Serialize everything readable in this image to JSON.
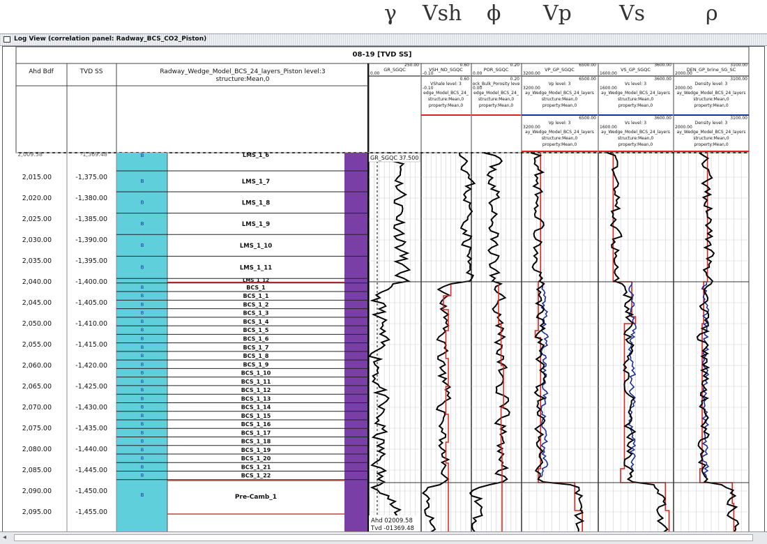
{
  "symbols": {
    "gamma": "γ",
    "vsh": "Vsh",
    "phi": "ϕ",
    "vp": "Vp",
    "vs": "Vs",
    "rho": "ρ"
  },
  "window": {
    "title": "Log View (correlation panel: Radway_BCS_CO2_Piston)"
  },
  "well": {
    "name": "08-19 [TVD SS]"
  },
  "columns": {
    "ahd": "Ahd Bdf",
    "tvd": "TVD SS",
    "model_title": "Radway_Wedge_Model_BCS_24_layers_Piston level:3",
    "model_sub": "structure:Mean,0"
  },
  "tracks": [
    {
      "title": "GR_SGQC",
      "left_val": "0.00",
      "right_val": "250.00",
      "sub": []
    },
    {
      "title": "VSH_ND_SGQC",
      "left_val": "-0.10",
      "right_val": "0.60",
      "sub": [
        "0.60",
        "VShale level: 3",
        "-0.10",
        "edge_Model_BCS_24_",
        "structure:Mean,0",
        "property:Mean,0"
      ]
    },
    {
      "title": "POR_SGQC",
      "left_val": "0.00",
      "right_val": "0.20",
      "sub": [
        "0.20",
        "ock_Bulk_Porosity leve",
        "0.00",
        "edge_Model_BCS_24_",
        "structure:Mean,0",
        "property:Mean,0"
      ]
    },
    {
      "title": "VP_GP_SGQC",
      "left_val": "3200.00",
      "right_val": "6500.00",
      "sub": [
        "6500.00",
        "Vp level: 3",
        "3200.00",
        "ay_Wedge_Model_BCS_24_layers",
        "structure:Mean,0",
        "property:Mean,0",
        "6500.00",
        "Vp level: 3",
        "3200.00",
        "ay_Wedge_Model_BCS_24_layers",
        "structure:Mean,0",
        "property:Mean,0"
      ]
    },
    {
      "title": "VS_GP_SGQC",
      "left_val": "1600.00",
      "right_val": "3600.00",
      "sub": [
        "3600.00",
        "Vs level: 3",
        "1600.00",
        "ay_Wedge_Model_BCS_24_layers",
        "structure:Mean,0",
        "property:Mean,0",
        "3600.00",
        "Vs level: 3",
        "1600.00",
        "ay_Wedge_Model_BCS_24_layers",
        "structure:Mean,0",
        "property:Mean,0"
      ]
    },
    {
      "title": "DEN_GP_brine_SG_SC",
      "left_val": "2000.00",
      "right_val": "3100.00",
      "sub": [
        "3100.00",
        "Density level: 3",
        "2000.00",
        "ay_Wedge_Model_BCS_24_layers",
        "structure:Mean,0",
        "property:Mean,0",
        "3100.00",
        "Density level: 3",
        "2000.00",
        "ay_Wedge_Model_BCS_24_layers",
        "structure:Mean,0",
        "property:Mean,0"
      ]
    }
  ],
  "depths": {
    "ahd": [
      "2,015.00",
      "2,020.00",
      "2,025.00",
      "2,030.00",
      "2,035.00",
      "2,040.00",
      "2,045.00",
      "2,050.00",
      "2,055.00",
      "2,060.00",
      "2,065.00",
      "2,070.00",
      "2,075.00",
      "2,080.00",
      "2,085.00",
      "2,090.00",
      "2,095.00"
    ],
    "tvd": [
      "-1,375.00",
      "-1,380.00",
      "-1,385.00",
      "-1,390.00",
      "-1,395.00",
      "-1,400.00",
      "-1,405.00",
      "-1,410.00",
      "-1,415.00",
      "-1,420.00",
      "-1,425.00",
      "-1,430.00",
      "-1,435.00",
      "-1,440.00",
      "-1,445.00",
      "-1,450.00",
      "-1,455.00"
    ],
    "top_ahd": "2,009.58",
    "top_tvd": "-1,369.48"
  },
  "layers": {
    "top_partial": "LMS_1_6",
    "lms": [
      "LMS_1_7",
      "LMS_1_8",
      "LMS_1_9",
      "LMS_1_10",
      "LMS_1_11"
    ],
    "lms_partial": "LMS_1_12",
    "bcs": [
      "BCS_1",
      "BCS_1_1",
      "BCS_1_2",
      "BCS_1_3",
      "BCS_1_4",
      "BCS_1_5",
      "BCS_1_6",
      "BCS_1_7",
      "BCS_1_8",
      "BCS_1_9",
      "BCS_1_10",
      "BCS_1_11",
      "BCS_1_12",
      "BCS_1_13",
      "BCS_1_14",
      "BCS_1_15",
      "BCS_1_16",
      "BCS_1_17",
      "BCS_1_18",
      "BCS_1_19",
      "BCS_1_20",
      "BCS_1_21",
      "BCS_1_22"
    ],
    "precamb": "Pre-Camb_1",
    "zone_marker": "B"
  },
  "readouts": {
    "gr": "GR_SGQC 37.500",
    "ahd": "Ahd 02009.58",
    "tvd": "Tvd -01369.48"
  },
  "colors": {
    "teal": "#5ecfdb",
    "purple": "#7a3fa6",
    "red": "#e0201a",
    "blue": "#1a2f9e",
    "black": "#000000"
  }
}
